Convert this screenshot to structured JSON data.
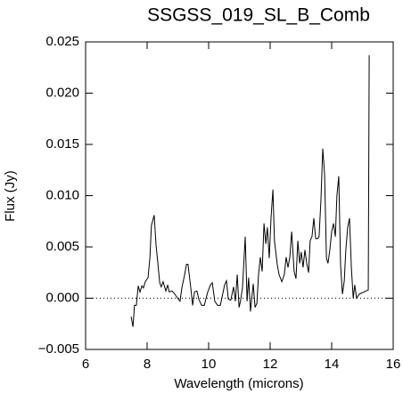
{
  "chart_data": {
    "type": "line",
    "title": "SSGSS_019_SL_B_Comb",
    "xlabel": "Wavelength (microns)",
    "ylabel": "Flux (Jy)",
    "xlim": [
      6,
      16
    ],
    "xticks": [
      6,
      8,
      10,
      12,
      14,
      16
    ],
    "ylim": [
      -0.005,
      0.025
    ],
    "yticks": [
      {
        "value": -0.005,
        "label": "−0.005"
      },
      {
        "value": 0,
        "label": "0.000"
      },
      0.005,
      {
        "value": 0.01,
        "label": "0.010"
      },
      0.015,
      {
        "value": 0.02,
        "label": "0.020"
      },
      0.025
    ],
    "zero_line": true,
    "series": [
      {
        "color": "#000000",
        "x": [
          7.48,
          7.54,
          7.59,
          7.65,
          7.71,
          7.77,
          7.83,
          7.88,
          7.94,
          8.03,
          8.09,
          8.14,
          8.23,
          8.29,
          8.35,
          8.41,
          8.46,
          8.52,
          8.61,
          8.67,
          8.72,
          8.81,
          8.9,
          8.99,
          9.07,
          9.13,
          9.22,
          9.28,
          9.33,
          9.42,
          9.48,
          9.54,
          9.62,
          9.68,
          9.77,
          9.86,
          9.91,
          9.97,
          10.06,
          10.12,
          10.2,
          10.29,
          10.38,
          10.43,
          10.52,
          10.58,
          10.64,
          10.72,
          10.81,
          10.87,
          10.93,
          10.99,
          11.04,
          11.1,
          11.19,
          11.25,
          11.3,
          11.36,
          11.45,
          11.51,
          11.57,
          11.62,
          11.68,
          11.74,
          11.8,
          11.86,
          11.91,
          11.97,
          12.03,
          12.09,
          12.14,
          12.23,
          12.29,
          12.38,
          12.46,
          12.52,
          12.58,
          12.64,
          12.7,
          12.78,
          12.84,
          12.9,
          12.96,
          13.01,
          13.07,
          13.13,
          13.19,
          13.25,
          13.3,
          13.36,
          13.42,
          13.48,
          13.54,
          13.59,
          13.65,
          13.71,
          13.77,
          13.83,
          13.88,
          13.94,
          14.0,
          14.06,
          14.12,
          14.17,
          14.23,
          14.29,
          14.35,
          14.41,
          14.46,
          14.52,
          14.58,
          14.64,
          14.7,
          14.75,
          14.81,
          14.9,
          15.19,
          15.22
        ],
        "values": [
          -0.0018,
          -0.0028,
          -0.0007,
          -0.0007,
          0.0012,
          0.0006,
          0.0012,
          0.001,
          0.0016,
          0.002,
          0.0039,
          0.0071,
          0.0081,
          0.0052,
          0.0034,
          0.0015,
          0.0011,
          0.0016,
          0.0007,
          0.0013,
          0.0006,
          0.0007,
          0.0004,
          0.0,
          -0.0003,
          0.001,
          0.0023,
          0.0033,
          0.0033,
          0.001,
          -0.0007,
          0.0006,
          0.0007,
          -0.0001,
          -0.0007,
          -0.0007,
          -0.0001,
          0.0006,
          0.0013,
          0.0015,
          -0.0003,
          -0.0007,
          -0.0007,
          0.0,
          0.0013,
          0.0017,
          -0.0001,
          -0.0002,
          0.0011,
          -0.0003,
          0.0023,
          -0.0009,
          -0.0002,
          0.001,
          0.006,
          -0.0003,
          0.002,
          -0.0013,
          0.0014,
          -0.0009,
          -0.0005,
          0.0022,
          0.004,
          0.0026,
          0.0073,
          0.0053,
          0.0069,
          0.0039,
          0.0079,
          0.0106,
          0.0056,
          0.0033,
          0.0023,
          0.0016,
          0.0023,
          0.004,
          0.003,
          0.004,
          0.0065,
          0.0026,
          0.0019,
          0.0056,
          0.0034,
          0.0045,
          0.003,
          0.0047,
          0.0034,
          0.0025,
          0.0056,
          0.006,
          0.0078,
          0.0058,
          0.0058,
          0.006,
          0.0095,
          0.0146,
          0.0121,
          0.0039,
          0.0034,
          0.0047,
          0.0065,
          0.0073,
          0.006,
          0.01,
          0.0119,
          0.0032,
          0.0004,
          0.0017,
          0.0047,
          0.0069,
          0.0078,
          0.003,
          0.0,
          0.0013,
          0.0,
          0.0004,
          0.0008,
          0.0237
        ]
      }
    ]
  }
}
